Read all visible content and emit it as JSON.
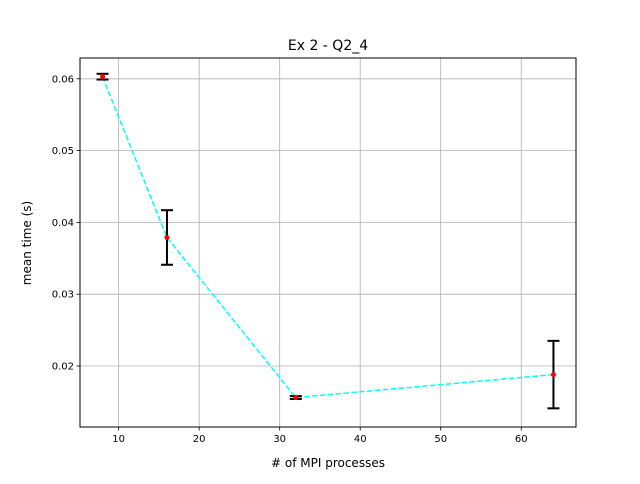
{
  "chart_data": {
    "type": "line",
    "title": "Ex 2 - Q2_4",
    "xlabel": "# of MPI processes",
    "ylabel": "mean time (s)",
    "xlim": [
      5.2,
      66.8
    ],
    "ylim": [
      0.0115,
      0.0629
    ],
    "xticks": [
      10,
      20,
      30,
      40,
      50,
      60
    ],
    "yticks": [
      0.02,
      0.03,
      0.04,
      0.05,
      0.06
    ],
    "xtick_labels": [
      "10",
      "20",
      "30",
      "40",
      "50",
      "60"
    ],
    "ytick_labels": [
      "0.02",
      "0.03",
      "0.04",
      "0.05",
      "0.06"
    ],
    "grid": true,
    "series": [
      {
        "x": [
          8,
          16,
          32,
          64
        ],
        "y": [
          0.0603,
          0.0379,
          0.0156,
          0.0188
        ],
        "yerr": [
          0.0004,
          0.0038,
          0.0002,
          0.0047
        ],
        "line_color": "#00ffff",
        "line_style": "dashed",
        "marker_color": "#ff0000",
        "errorbar_color": "#000000"
      }
    ]
  }
}
